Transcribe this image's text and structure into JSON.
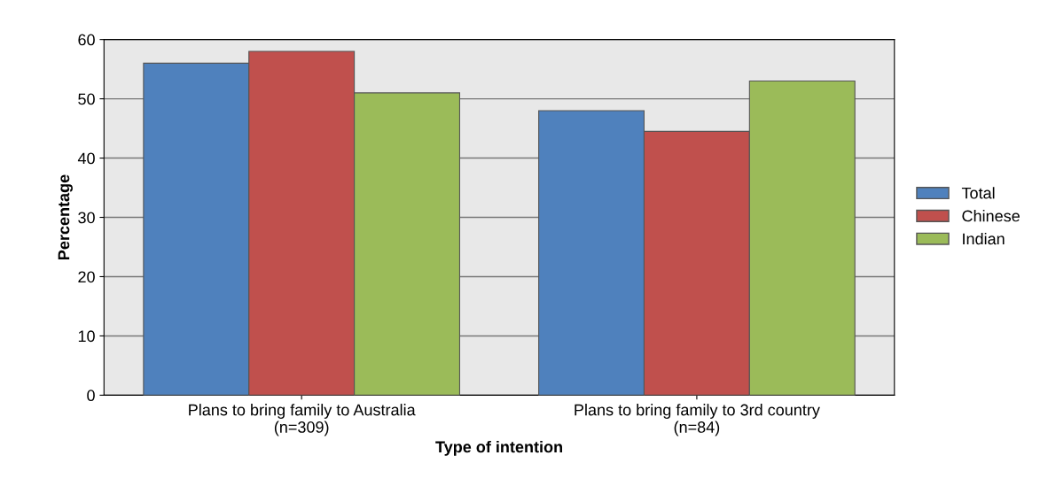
{
  "chart_data": {
    "type": "bar",
    "xlabel": "Type of intention",
    "ylabel": "Percentage",
    "categories": [
      "Plans to bring family to Australia\n(n=309)",
      "Plans to bring family to 3rd country\n(n=84)"
    ],
    "series": [
      {
        "name": "Total",
        "color": "#4f81bd",
        "values": [
          56,
          48
        ]
      },
      {
        "name": "Chinese",
        "color": "#c0504d",
        "values": [
          58,
          44.5
        ]
      },
      {
        "name": "Indian",
        "color": "#9bbb59",
        "values": [
          51,
          53
        ]
      }
    ],
    "ylim": [
      0,
      60
    ],
    "yticks": [
      0,
      10,
      20,
      30,
      40,
      50,
      60
    ],
    "grid": "y",
    "legend": "right"
  }
}
